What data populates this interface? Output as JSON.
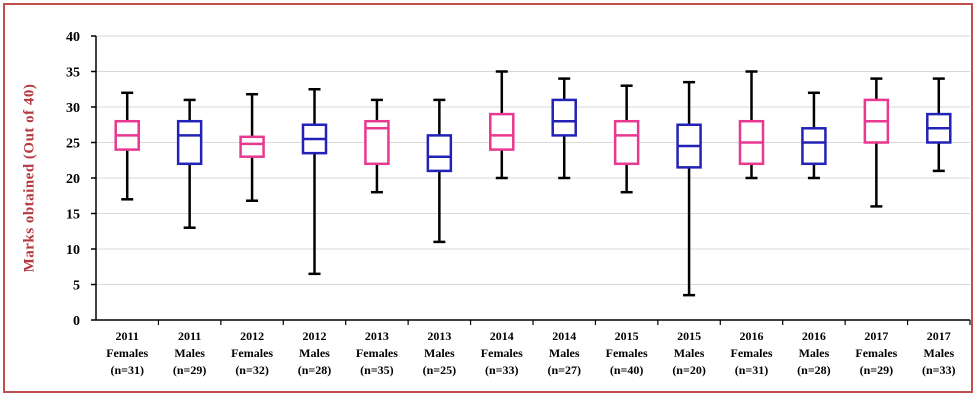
{
  "chart_data": {
    "type": "boxplot",
    "ylabel": "Marks obtained (Out of 40)",
    "ylim": [
      0,
      40
    ],
    "yticks": [
      0,
      5,
      10,
      15,
      20,
      25,
      30,
      35,
      40
    ],
    "grid": true,
    "colors": {
      "Females": "#e8388f",
      "Males": "#2222b8",
      "whisker": "#000000",
      "grid": "#d9d9d9"
    },
    "boxes": [
      {
        "year": "2011",
        "group": "Females",
        "n": "(n=31)",
        "min": 17,
        "q1": 24,
        "median": 26,
        "q3": 28,
        "max": 32
      },
      {
        "year": "2011",
        "group": "Males",
        "n": "(n=29)",
        "min": 13,
        "q1": 22,
        "median": 26,
        "q3": 28,
        "max": 31
      },
      {
        "year": "2012",
        "group": "Females",
        "n": "(n=32)",
        "min": 16.8,
        "q1": 23,
        "median": 24.8,
        "q3": 25.8,
        "max": 31.8
      },
      {
        "year": "2012",
        "group": "Males",
        "n": "(n=28)",
        "min": 6.5,
        "q1": 23.5,
        "median": 25.5,
        "q3": 27.5,
        "max": 32.5
      },
      {
        "year": "2013",
        "group": "Females",
        "n": "(n=35)",
        "min": 18,
        "q1": 22,
        "median": 27,
        "q3": 28,
        "max": 31
      },
      {
        "year": "2013",
        "group": "Males",
        "n": "(n=25)",
        "min": 11,
        "q1": 21,
        "median": 23,
        "q3": 26,
        "max": 31
      },
      {
        "year": "2014",
        "group": "Females",
        "n": "(n=33)",
        "min": 20,
        "q1": 24,
        "median": 26,
        "q3": 29,
        "max": 35
      },
      {
        "year": "2014",
        "group": "Males",
        "n": "(n=27)",
        "min": 20,
        "q1": 26,
        "median": 28,
        "q3": 31,
        "max": 34
      },
      {
        "year": "2015",
        "group": "Females",
        "n": "(n=40)",
        "min": 18,
        "q1": 22,
        "median": 26,
        "q3": 28,
        "max": 33
      },
      {
        "year": "2015",
        "group": "Males",
        "n": "(n=20)",
        "min": 3.5,
        "q1": 21.5,
        "median": 24.5,
        "q3": 27.5,
        "max": 33.5
      },
      {
        "year": "2016",
        "group": "Females",
        "n": "(n=31)",
        "min": 20,
        "q1": 22,
        "median": 25,
        "q3": 28,
        "max": 35
      },
      {
        "year": "2016",
        "group": "Males",
        "n": "(n=28)",
        "min": 20,
        "q1": 22,
        "median": 25,
        "q3": 27,
        "max": 32
      },
      {
        "year": "2017",
        "group": "Females",
        "n": "(n=29)",
        "min": 16,
        "q1": 25,
        "median": 28,
        "q3": 31,
        "max": 34
      },
      {
        "year": "2017",
        "group": "Males",
        "n": "(n=33)",
        "min": 21,
        "q1": 25,
        "median": 27,
        "q3": 29,
        "max": 34
      }
    ]
  }
}
